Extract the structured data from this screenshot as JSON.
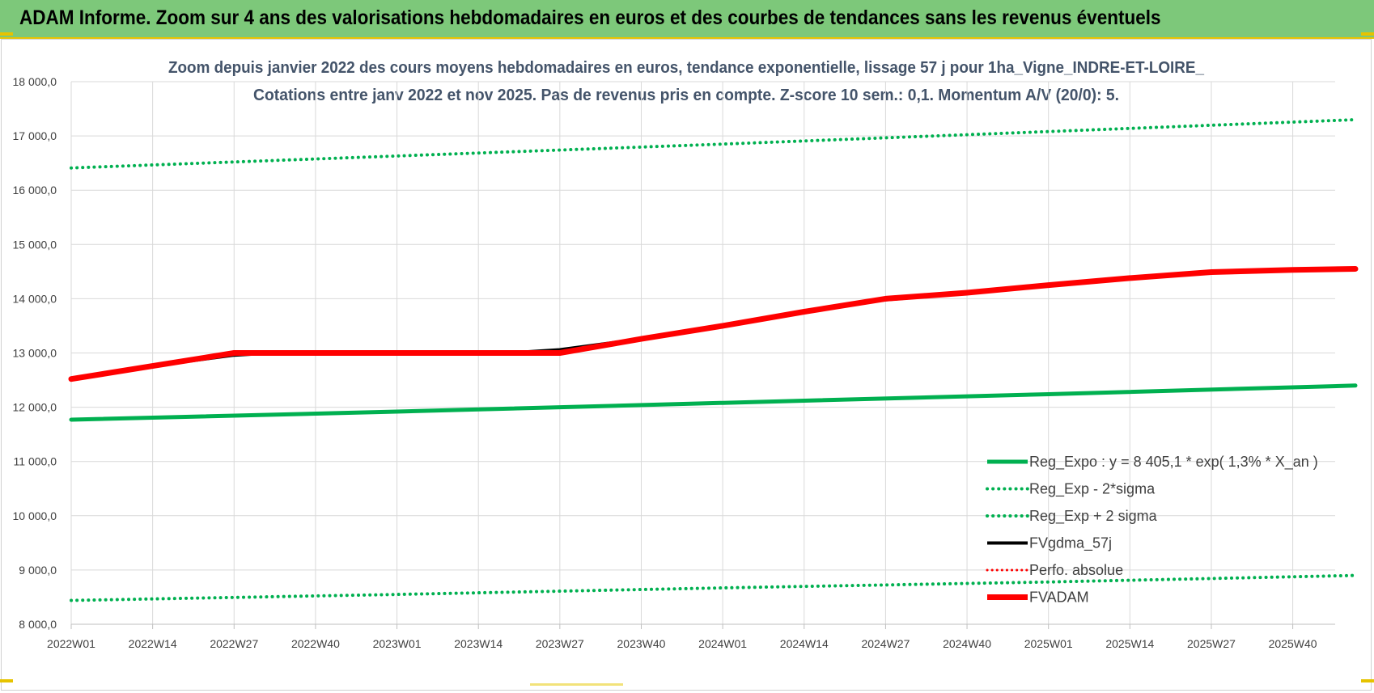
{
  "banner": {
    "title": "ADAM Informe. Zoom sur 4 ans des valorisations hebdomadaires en euros et des courbes de tendances sans les revenus éventuels"
  },
  "chart_data": {
    "type": "line",
    "title": "Zoom depuis janvier 2022 des cours moyens hebdomadaires en euros, tendance exponentielle, lissage 57 j pour 1ha_Vigne_INDRE-ET-LOIRE_",
    "subtitle": "Cotations entre janv 2022 et nov 2025. Pas de revenus pris en compte. Z-score 10 sem.: 0,1. Momentum A/V (20/0): 5.",
    "xlabel": "",
    "ylabel": "",
    "ylim": [
      8000,
      18000
    ],
    "y_ticks": [
      "8 000,0",
      "9 000,0",
      "10 000,0",
      "11 000,0",
      "12 000,0",
      "13 000,0",
      "14 000,0",
      "15 000,0",
      "16 000,0",
      "17 000,0",
      "18 000,0"
    ],
    "y_tick_values": [
      8000,
      9000,
      10000,
      11000,
      12000,
      13000,
      14000,
      15000,
      16000,
      17000,
      18000
    ],
    "x_ticks": [
      "2022W01",
      "2022W14",
      "2022W27",
      "2022W40",
      "2023W01",
      "2023W14",
      "2023W27",
      "2023W40",
      "2024W01",
      "2024W14",
      "2024W27",
      "2024W40",
      "2025W01",
      "2025W14",
      "2025W27",
      "2025W40"
    ],
    "x_tick_weeks": [
      0,
      13,
      26,
      39,
      52,
      65,
      78,
      91,
      104,
      117,
      130,
      143,
      156,
      169,
      182,
      195
    ],
    "x_max_week": 205,
    "grid": true,
    "legend_position": "bottom-right",
    "series": [
      {
        "name": "Reg_Expo : y = 8 405,1 * exp( 1,3% *  X_an )",
        "color": "#00b050",
        "style": "solid",
        "width": 5,
        "points": [
          [
            0,
            11770
          ],
          [
            52,
            11920
          ],
          [
            104,
            12080
          ],
          [
            156,
            12240
          ],
          [
            205,
            12400
          ]
        ]
      },
      {
        "name": "Reg_Exp - 2*sigma",
        "color": "#00b050",
        "style": "dotted",
        "width": 4,
        "points": [
          [
            0,
            8440
          ],
          [
            52,
            8550
          ],
          [
            104,
            8670
          ],
          [
            156,
            8780
          ],
          [
            205,
            8900
          ]
        ]
      },
      {
        "name": "Reg_Exp + 2 sigma",
        "color": "#00b050",
        "style": "dotted",
        "width": 4,
        "points": [
          [
            0,
            16410
          ],
          [
            52,
            16630
          ],
          [
            104,
            16850
          ],
          [
            156,
            17080
          ],
          [
            205,
            17300
          ]
        ]
      },
      {
        "name": "FVgdma_57j",
        "color": "#000000",
        "style": "solid",
        "width": 4,
        "points": [
          [
            0,
            12520
          ],
          [
            13,
            12760
          ],
          [
            26,
            12960
          ],
          [
            32,
            13000
          ],
          [
            70,
            13000
          ],
          [
            78,
            13060
          ],
          [
            91,
            13260
          ],
          [
            104,
            13500
          ],
          [
            117,
            13760
          ],
          [
            130,
            13980
          ],
          [
            143,
            14100
          ],
          [
            156,
            14250
          ],
          [
            169,
            14370
          ],
          [
            182,
            14480
          ],
          [
            195,
            14520
          ],
          [
            205,
            14550
          ]
        ]
      },
      {
        "name": "Perfo. absolue",
        "color": "#ff0000",
        "style": "dotted",
        "width": 3,
        "points": [
          [
            0,
            12520
          ],
          [
            13,
            12760
          ],
          [
            26,
            13000
          ],
          [
            78,
            13000
          ],
          [
            91,
            13260
          ],
          [
            104,
            13500
          ],
          [
            117,
            13760
          ],
          [
            130,
            14000
          ],
          [
            143,
            14110
          ],
          [
            156,
            14250
          ],
          [
            169,
            14380
          ],
          [
            182,
            14490
          ],
          [
            195,
            14530
          ],
          [
            205,
            14550
          ]
        ]
      },
      {
        "name": "FVADAM",
        "color": "#ff0000",
        "style": "solid",
        "width": 7,
        "points": [
          [
            0,
            12520
          ],
          [
            13,
            12760
          ],
          [
            26,
            13000
          ],
          [
            78,
            13000
          ],
          [
            91,
            13260
          ],
          [
            104,
            13500
          ],
          [
            117,
            13760
          ],
          [
            130,
            14000
          ],
          [
            143,
            14110
          ],
          [
            156,
            14250
          ],
          [
            169,
            14380
          ],
          [
            182,
            14490
          ],
          [
            195,
            14530
          ],
          [
            205,
            14550
          ]
        ]
      }
    ]
  }
}
